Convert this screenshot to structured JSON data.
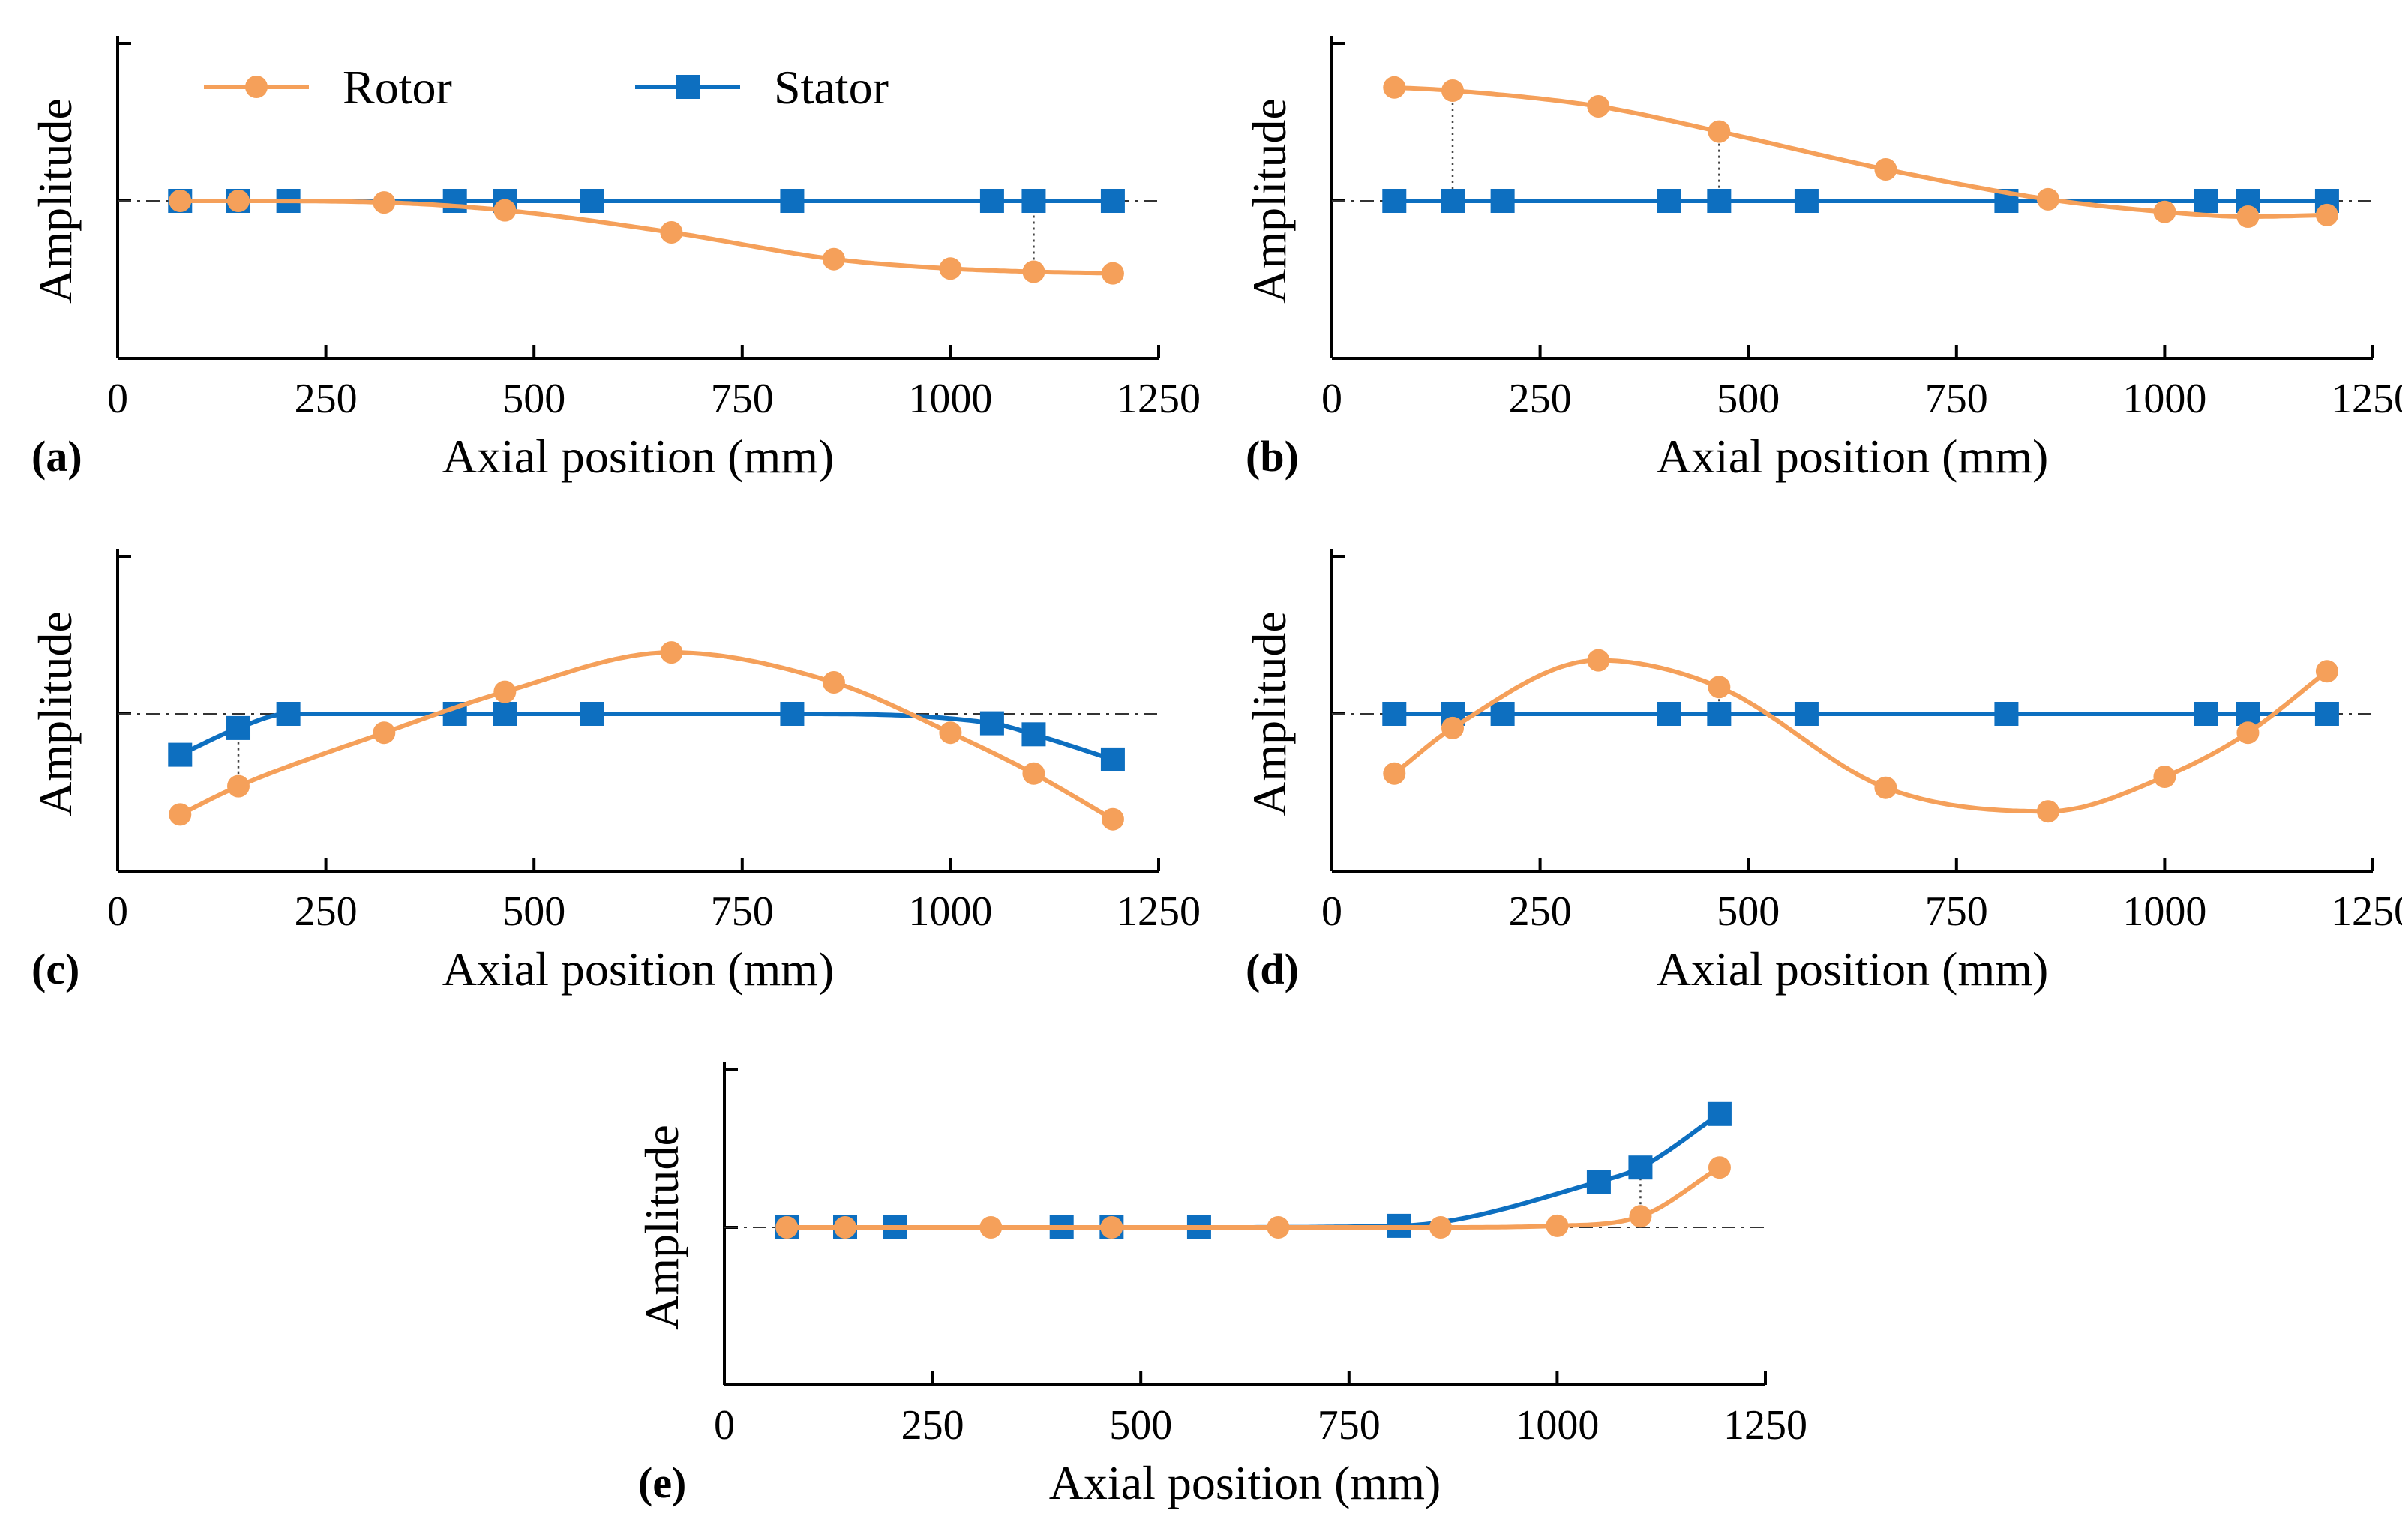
{
  "figure": {
    "xlabel": "Axial position (mm)",
    "ylabel": "Amplitude",
    "xticks": [
      0,
      250,
      500,
      750,
      1000,
      1250
    ],
    "colors": {
      "rotor": "#f5a05a",
      "stator": "#0d6fc0",
      "axes": "#000000",
      "zero_line": "#333333"
    },
    "legend": {
      "placement": "top-left",
      "entries": [
        "Rotor",
        "Stator"
      ]
    }
  },
  "chart_data": [
    {
      "panel": "(a)",
      "type": "line",
      "xlim": [
        0,
        1250
      ],
      "ylim": [
        -1,
        1
      ],
      "xlabel": "Axial position (mm)",
      "ylabel": "Amplitude",
      "legend": true,
      "series": [
        {
          "name": "Rotor",
          "marker": "circle",
          "x": [
            75,
            145,
            320,
            465,
            665,
            860,
            1000,
            1100,
            1195
          ],
          "y": [
            0,
            0,
            -0.01,
            -0.06,
            -0.2,
            -0.37,
            -0.43,
            -0.45,
            -0.46
          ]
        },
        {
          "name": "Stator",
          "marker": "square",
          "x": [
            75,
            145,
            205,
            405,
            465,
            570,
            810,
            1050,
            1100,
            1195
          ],
          "y": [
            0,
            0,
            0,
            0,
            0,
            0,
            0,
            0,
            0,
            0
          ]
        }
      ],
      "connectors": [
        1100
      ]
    },
    {
      "panel": "(b)",
      "type": "line",
      "xlim": [
        0,
        1250
      ],
      "ylim": [
        -1,
        1
      ],
      "xlabel": "Axial position (mm)",
      "ylabel": "Amplitude",
      "legend": false,
      "series": [
        {
          "name": "Rotor",
          "marker": "circle",
          "x": [
            75,
            145,
            320,
            465,
            665,
            860,
            1000,
            1100,
            1195
          ],
          "y": [
            0.72,
            0.7,
            0.6,
            0.44,
            0.2,
            0.01,
            -0.07,
            -0.1,
            -0.09
          ]
        },
        {
          "name": "Stator",
          "marker": "square",
          "x": [
            75,
            145,
            205,
            405,
            465,
            570,
            810,
            1050,
            1100,
            1195
          ],
          "y": [
            0,
            0,
            0,
            0,
            0,
            0,
            0,
            0,
            0,
            0
          ]
        }
      ],
      "connectors": [
        145,
        465
      ]
    },
    {
      "panel": "(c)",
      "type": "line",
      "xlim": [
        0,
        1250
      ],
      "ylim": [
        -1,
        1
      ],
      "xlabel": "Axial position (mm)",
      "ylabel": "Amplitude",
      "legend": false,
      "series": [
        {
          "name": "Rotor",
          "marker": "circle",
          "x": [
            75,
            145,
            320,
            465,
            665,
            860,
            1000,
            1100,
            1195
          ],
          "y": [
            -0.64,
            -0.46,
            -0.12,
            0.14,
            0.39,
            0.2,
            -0.12,
            -0.38,
            -0.67
          ]
        },
        {
          "name": "Stator",
          "marker": "square",
          "x": [
            75,
            145,
            205,
            405,
            465,
            570,
            810,
            1050,
            1100,
            1195
          ],
          "y": [
            -0.26,
            -0.09,
            0,
            0,
            0,
            0,
            0,
            -0.06,
            -0.13,
            -0.29
          ]
        }
      ],
      "connectors": [
        145,
        465
      ]
    },
    {
      "panel": "(d)",
      "type": "line",
      "xlim": [
        0,
        1250
      ],
      "ylim": [
        -1,
        1
      ],
      "xlabel": "Axial position (mm)",
      "ylabel": "Amplitude",
      "legend": false,
      "series": [
        {
          "name": "Rotor",
          "marker": "circle",
          "x": [
            75,
            145,
            320,
            465,
            665,
            860,
            1000,
            1100,
            1195
          ],
          "y": [
            -0.38,
            -0.09,
            0.34,
            0.17,
            -0.47,
            -0.62,
            -0.4,
            -0.12,
            0.27
          ]
        },
        {
          "name": "Stator",
          "marker": "square",
          "x": [
            75,
            145,
            205,
            405,
            465,
            570,
            810,
            1050,
            1100,
            1195
          ],
          "y": [
            0,
            0,
            0,
            0,
            0,
            0,
            0,
            0,
            0,
            0
          ]
        }
      ],
      "connectors": [
        145,
        465,
        1100
      ]
    },
    {
      "panel": "(e)",
      "type": "line",
      "xlim": [
        0,
        1250
      ],
      "ylim": [
        -1,
        1
      ],
      "xlabel": "Axial position (mm)",
      "ylabel": "Amplitude",
      "legend": false,
      "series": [
        {
          "name": "Rotor",
          "marker": "circle",
          "x": [
            75,
            145,
            320,
            465,
            665,
            860,
            1000,
            1100,
            1195
          ],
          "y": [
            0,
            0,
            0,
            0,
            0,
            0,
            0.01,
            0.07,
            0.38
          ]
        },
        {
          "name": "Stator",
          "marker": "square",
          "x": [
            75,
            145,
            205,
            405,
            465,
            570,
            810,
            1050,
            1100,
            1195
          ],
          "y": [
            0,
            0,
            0,
            0,
            0,
            0,
            0.01,
            0.29,
            0.38,
            0.72
          ]
        }
      ],
      "connectors": [
        1100
      ]
    }
  ]
}
